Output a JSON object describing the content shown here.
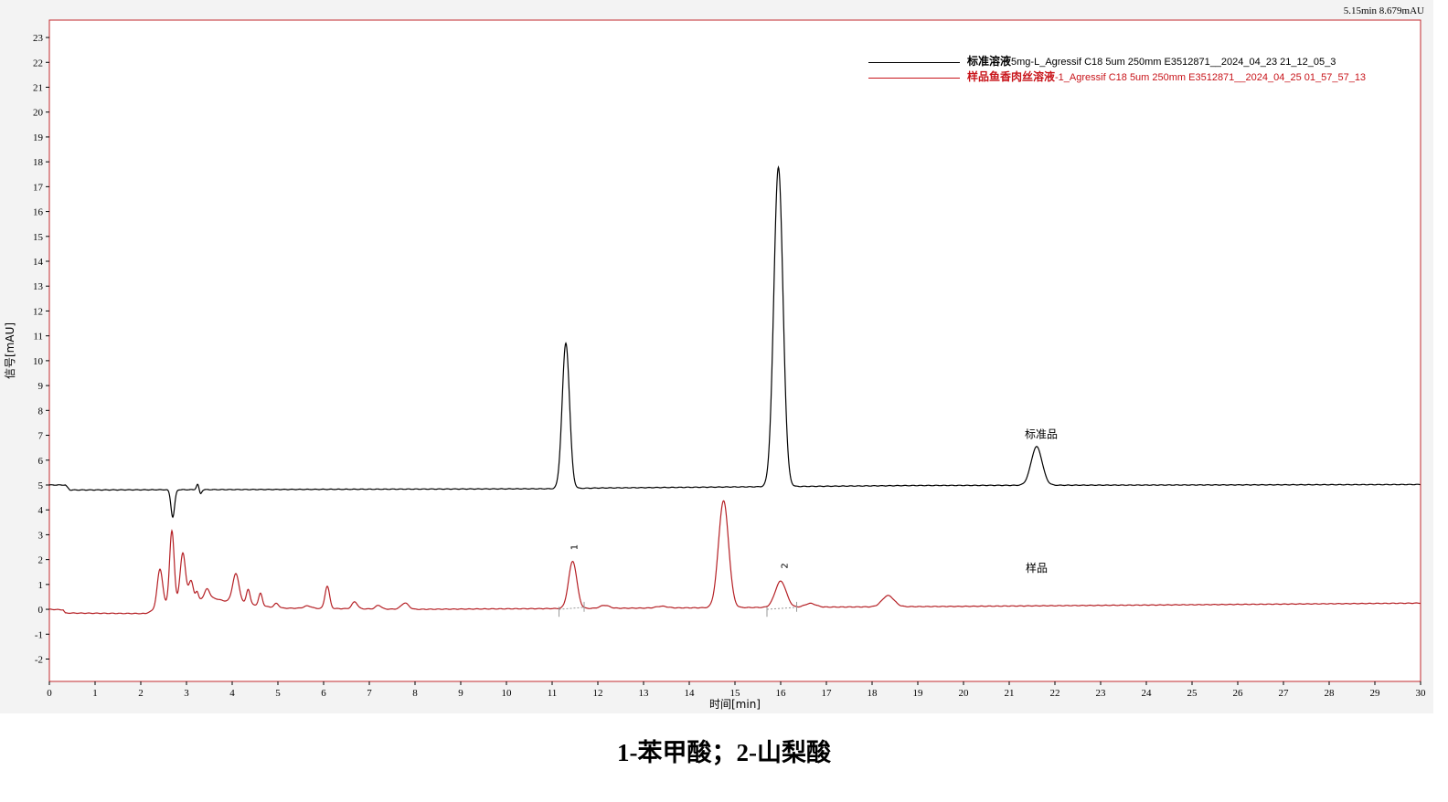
{
  "readout": "5.15min 8.679mAU",
  "caption": "1-苯甲酸；2-山梨酸",
  "chart_data": {
    "type": "line",
    "xlabel": "时间[min]",
    "ylabel": "信号[mAU]",
    "xlim": [
      0,
      30
    ],
    "ylim": [
      -2.9,
      23.7
    ],
    "xticks": [
      0,
      1,
      2,
      3,
      4,
      5,
      6,
      7,
      8,
      9,
      10,
      11,
      12,
      13,
      14,
      15,
      16,
      17,
      18,
      19,
      20,
      21,
      22,
      23,
      24,
      25,
      26,
      27,
      28,
      29,
      30
    ],
    "yticks": [
      -2,
      -1,
      0,
      1,
      2,
      3,
      4,
      5,
      6,
      7,
      8,
      9,
      10,
      11,
      12,
      13,
      14,
      15,
      16,
      17,
      18,
      19,
      20,
      21,
      22,
      23
    ],
    "grid": false,
    "legend_position": "top-right",
    "series": [
      {
        "name": "标准溶液5mg-L_Agressif C18 5um 250mm E3512871__2024_04_23 21_12_05_3",
        "name_bold": "标准溶液",
        "name_rest": "5mg-L_Agressif C18 5um 250mm E3512871__2024_04_23 21_12_05_3",
        "color": "#000000",
        "baseline": [
          [
            0,
            5.0
          ],
          [
            0.35,
            5.0
          ],
          [
            0.45,
            4.8
          ],
          [
            11.0,
            4.85
          ],
          [
            12.0,
            4.88
          ],
          [
            19,
            4.98
          ],
          [
            30,
            5.02
          ]
        ],
        "peaks": [
          [
            2.7,
            -1.1,
            0.04
          ],
          [
            3.25,
            0.25,
            0.03
          ],
          [
            3.3,
            -0.2,
            0.03
          ],
          [
            11.3,
            5.85,
            0.08
          ],
          [
            15.95,
            12.85,
            0.1
          ],
          [
            21.6,
            1.55,
            0.12
          ]
        ]
      },
      {
        "name": "样品鱼香肉丝溶液-1_Agressif C18 5um 250mm E3512871__2024_04_25 01_57_57_13",
        "name_bold": "样品鱼香肉丝溶液",
        "name_rest": "-1_Agressif C18 5um 250mm E3512871__2024_04_25 01_57_57_13",
        "color": "#b52025",
        "baseline": [
          [
            0,
            0
          ],
          [
            0.3,
            -0.02
          ],
          [
            0.35,
            -0.15
          ],
          [
            2.1,
            -0.17
          ],
          [
            2.4,
            0.05
          ],
          [
            3.5,
            0.5
          ],
          [
            3.8,
            0.35
          ],
          [
            5.0,
            0.05
          ],
          [
            8,
            0.0
          ],
          [
            20,
            0.12
          ],
          [
            30,
            0.25
          ]
        ],
        "peaks": [
          [
            2.42,
            1.55,
            0.06
          ],
          [
            2.68,
            3.0,
            0.05
          ],
          [
            2.92,
            2.0,
            0.06
          ],
          [
            3.1,
            0.8,
            0.05
          ],
          [
            3.23,
            0.3,
            0.03
          ],
          [
            3.45,
            0.35,
            0.05
          ],
          [
            4.08,
            1.15,
            0.07
          ],
          [
            4.35,
            0.6,
            0.04
          ],
          [
            4.62,
            0.5,
            0.04
          ],
          [
            4.97,
            0.18,
            0.05
          ],
          [
            5.65,
            0.1,
            0.08
          ],
          [
            6.08,
            0.9,
            0.05
          ],
          [
            6.68,
            0.28,
            0.06
          ],
          [
            7.2,
            0.15,
            0.06
          ],
          [
            7.78,
            0.25,
            0.08
          ],
          [
            11.45,
            1.9,
            0.09
          ],
          [
            12.15,
            0.12,
            0.1
          ],
          [
            13.4,
            0.07,
            0.12
          ],
          [
            14.75,
            4.3,
            0.11
          ],
          [
            16.0,
            1.05,
            0.12
          ],
          [
            16.65,
            0.15,
            0.12
          ],
          [
            18.35,
            0.45,
            0.13
          ]
        ]
      }
    ],
    "annotations": [
      {
        "text": "1",
        "x": 11.55,
        "y": 2.5,
        "rotated": true
      },
      {
        "text": "2",
        "x": 16.15,
        "y": 1.75,
        "rotated": true
      },
      {
        "text": "标准品",
        "x": 21.7,
        "y": 6.9
      },
      {
        "text": "样品",
        "x": 21.6,
        "y": 1.5
      }
    ]
  }
}
